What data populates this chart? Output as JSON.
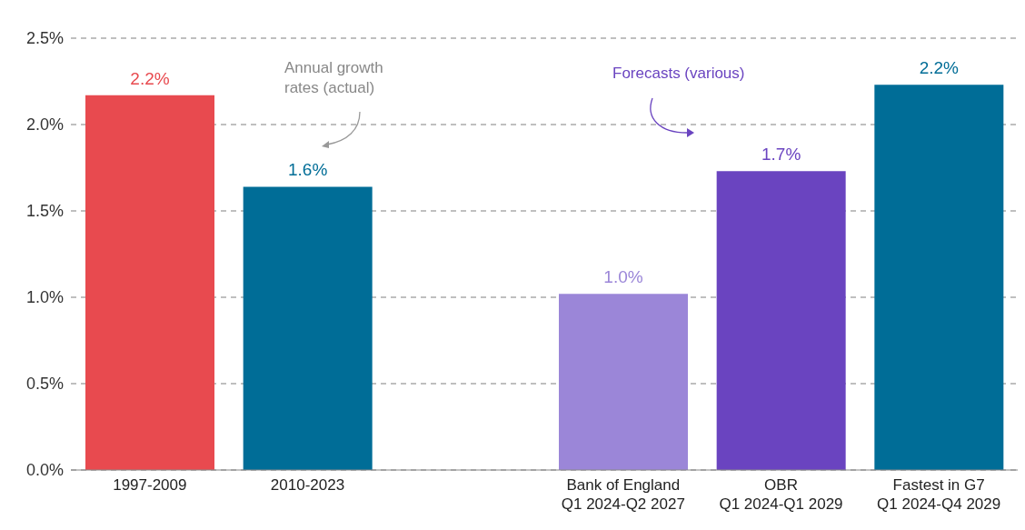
{
  "chart_data": {
    "type": "bar",
    "categories": [
      "1997-2009",
      "2010-2023",
      null,
      "Bank of England\nQ1 2024-Q2 2027",
      "OBR\nQ1 2024-Q1 2029",
      "Fastest in G7\nQ1 2024-Q4 2029"
    ],
    "values": [
      2.17,
      1.64,
      null,
      1.02,
      1.73,
      2.23
    ],
    "value_labels": [
      "2.2%",
      "1.6%",
      null,
      "1.0%",
      "1.7%",
      "2.2%"
    ],
    "colors": [
      "#e84a4f",
      "#006d97",
      "#006d97",
      "#9b86d8",
      "#6a44c0",
      "#006d97"
    ],
    "ylim": [
      0,
      2.5
    ],
    "yticks": [
      {
        "value": 0,
        "label": "0.0%"
      },
      {
        "value": 0.5,
        "label": "0.5%"
      },
      {
        "value": 1,
        "label": "1.0%"
      },
      {
        "value": 1.5,
        "label": "1.5%"
      },
      {
        "value": 2,
        "label": "2.0%"
      },
      {
        "value": 2.5,
        "label": "2.5%"
      }
    ],
    "grid": "y",
    "annotations": [
      "Annual growth rates (actual)",
      "Forecasts (various)"
    ]
  }
}
